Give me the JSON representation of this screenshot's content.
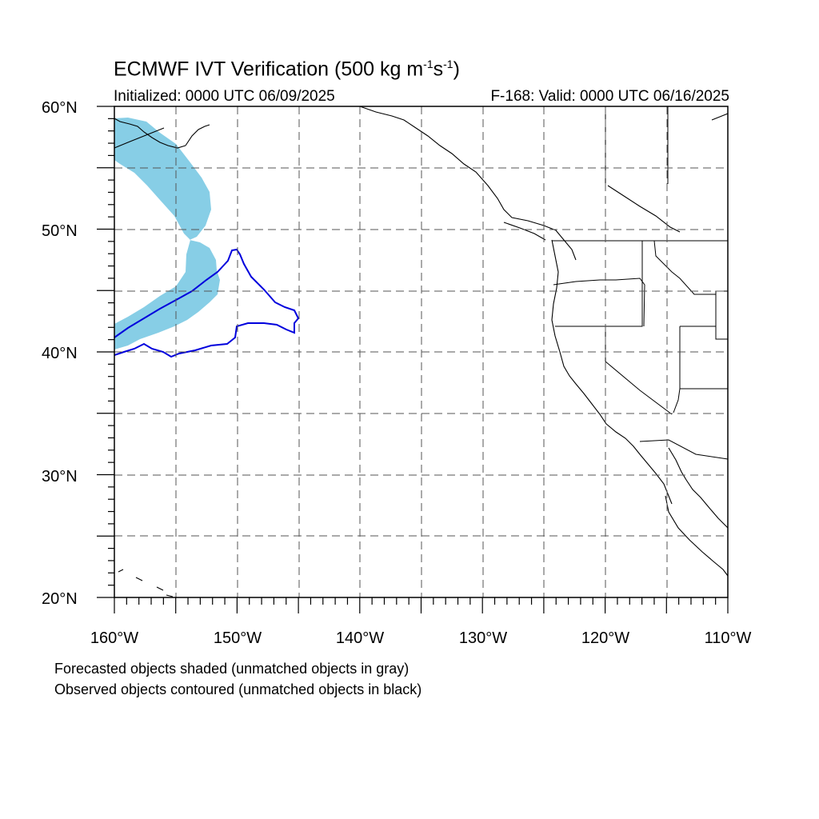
{
  "title": {
    "main_prefix": "ECMWF IVT Verification (500 kg m",
    "sup1": "-1",
    "mid": "s",
    "sup2": "-1",
    "suffix": ")"
  },
  "subtitle_left": "Initialized: 0000 UTC 06/09/2025",
  "subtitle_right": "F-168: Valid: 0000 UTC 06/16/2025",
  "map": {
    "projection": "cylindrical-equidistant",
    "lon_range": [
      -160,
      -110
    ],
    "lat_range": [
      20,
      60
    ],
    "grid": "dashed every 5 degrees",
    "lat_labels": [
      "60°N",
      "50°N",
      "40°N",
      "30°N",
      "20°N"
    ],
    "lon_labels": [
      "160°W",
      "150°W",
      "140°W",
      "130°W",
      "120°W",
      "110°W"
    ],
    "forecast_object_color": "#87CEE6",
    "observed_object_color": "#0000DD",
    "coastline_color": "#000000"
  },
  "footnotes": {
    "line1": "Forecasted objects shaded (unmatched objects in gray)",
    "line2": "Observed objects contoured (unmatched objects in black)"
  }
}
